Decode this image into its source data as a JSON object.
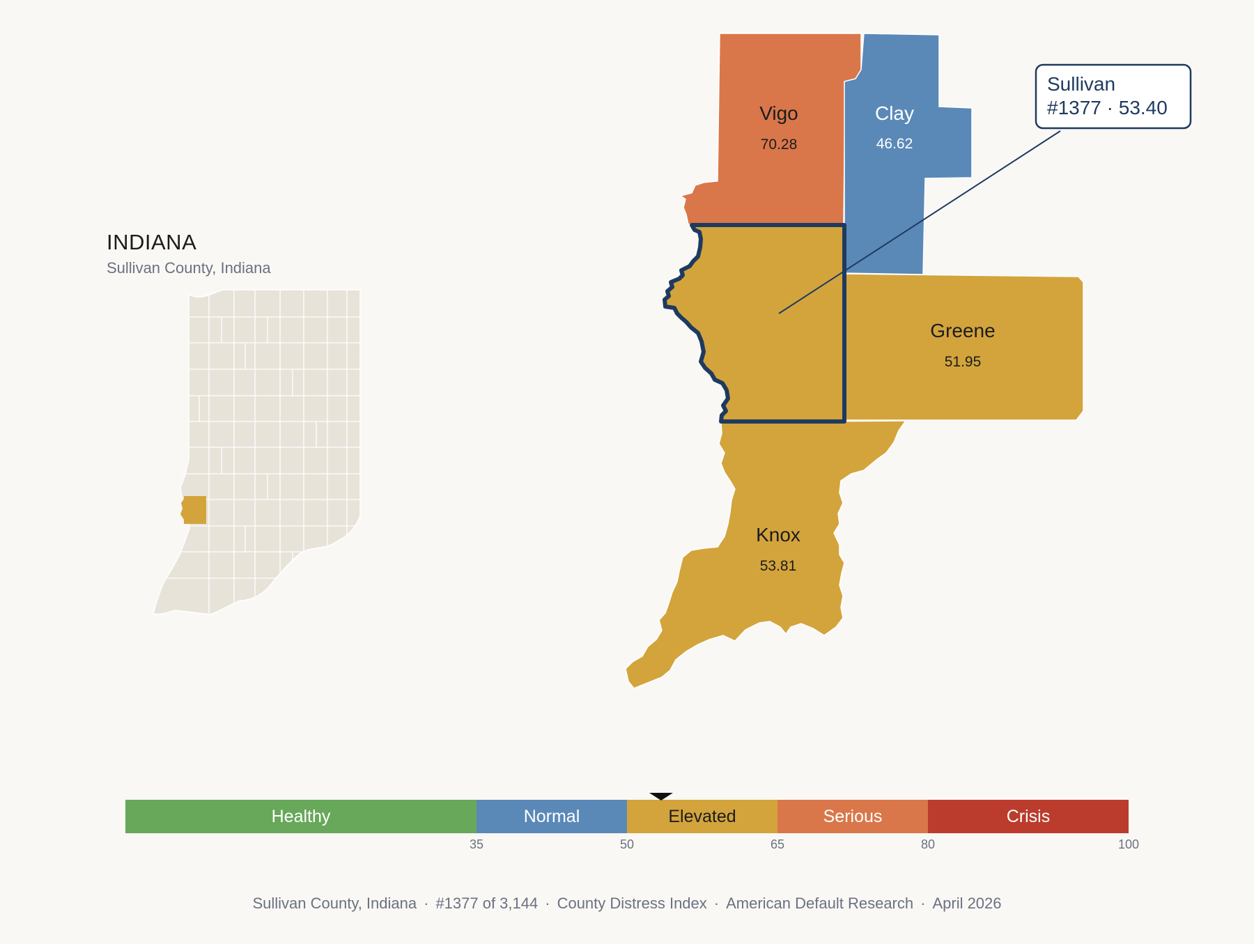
{
  "inset": {
    "title": "INDIANA",
    "subtitle": "Sullivan County, Indiana"
  },
  "counties": [
    {
      "id": "vigo",
      "name": "Vigo",
      "score": "70.28",
      "category": "Serious",
      "color": "#d9774a"
    },
    {
      "id": "clay",
      "name": "Clay",
      "score": "46.62",
      "category": "Normal",
      "color": "#5a89b8"
    },
    {
      "id": "sullivan",
      "name": "Sullivan",
      "score": "53.40",
      "category": "Elevated",
      "color": "#d3a43c"
    },
    {
      "id": "greene",
      "name": "Greene",
      "score": "51.95",
      "category": "Elevated",
      "color": "#d3a43c"
    },
    {
      "id": "knox",
      "name": "Knox",
      "score": "53.81",
      "category": "Elevated",
      "color": "#d3a43c"
    }
  ],
  "callout": {
    "line1": "Sullivan",
    "line2": "#1377 · 53.40"
  },
  "legend": {
    "marker_value": 53.4,
    "segments": [
      {
        "label": "Healthy",
        "from": 0,
        "to": 35,
        "color": "#67a85a"
      },
      {
        "label": "Normal",
        "from": 35,
        "to": 50,
        "color": "#5a89b8"
      },
      {
        "label": "Elevated",
        "from": 50,
        "to": 65,
        "color": "#d3a43c"
      },
      {
        "label": "Serious",
        "from": 65,
        "to": 80,
        "color": "#d9774a"
      },
      {
        "label": "Crisis",
        "from": 80,
        "to": 100,
        "color": "#bb3c2c"
      }
    ],
    "ticks": [
      "35",
      "50",
      "65",
      "80",
      "100"
    ]
  },
  "footer": {
    "county": "Sullivan County, Indiana",
    "rank": "#1377 of 3,144",
    "index": "County Distress Index",
    "source": "American Default Research",
    "date": "April 2026"
  },
  "colors": {
    "highlight_stroke": "#1f3a5f",
    "inset_fill": "#e8e3d9",
    "background": "#f9f8f5"
  }
}
